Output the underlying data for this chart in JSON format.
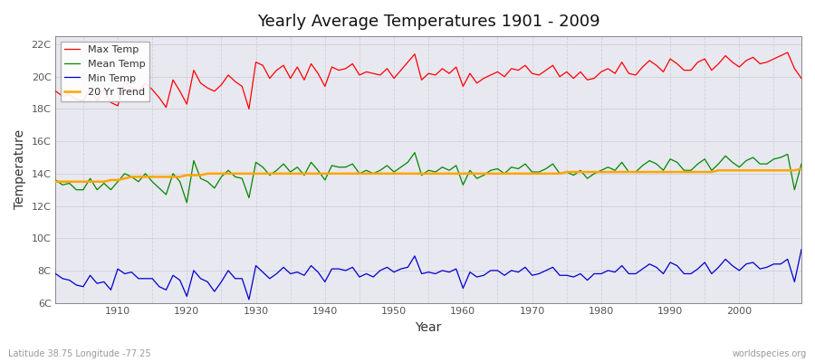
{
  "title": "Yearly Average Temperatures 1901 - 2009",
  "xlabel": "Year",
  "ylabel": "Temperature",
  "lat_lon_label": "Latitude 38.75 Longitude -77.25",
  "source_label": "worldspecies.org",
  "years": [
    1901,
    1902,
    1903,
    1904,
    1905,
    1906,
    1907,
    1908,
    1909,
    1910,
    1911,
    1912,
    1913,
    1914,
    1915,
    1916,
    1917,
    1918,
    1919,
    1920,
    1921,
    1922,
    1923,
    1924,
    1925,
    1926,
    1927,
    1928,
    1929,
    1930,
    1931,
    1932,
    1933,
    1934,
    1935,
    1936,
    1937,
    1938,
    1939,
    1940,
    1941,
    1942,
    1943,
    1944,
    1945,
    1946,
    1947,
    1948,
    1949,
    1950,
    1951,
    1952,
    1953,
    1954,
    1955,
    1956,
    1957,
    1958,
    1959,
    1960,
    1961,
    1962,
    1963,
    1964,
    1965,
    1966,
    1967,
    1968,
    1969,
    1970,
    1971,
    1972,
    1973,
    1974,
    1975,
    1976,
    1977,
    1978,
    1979,
    1980,
    1981,
    1982,
    1983,
    1984,
    1985,
    1986,
    1987,
    1988,
    1989,
    1990,
    1991,
    1992,
    1993,
    1994,
    1995,
    1996,
    1997,
    1998,
    1999,
    2000,
    2001,
    2002,
    2003,
    2004,
    2005,
    2006,
    2007,
    2008,
    2009
  ],
  "max_temp": [
    19.1,
    18.8,
    18.9,
    18.6,
    18.5,
    19.3,
    18.5,
    19.2,
    18.4,
    18.2,
    19.7,
    19.3,
    19.1,
    19.6,
    19.2,
    18.7,
    18.1,
    19.8,
    19.1,
    18.3,
    20.4,
    19.6,
    19.3,
    19.1,
    19.5,
    20.1,
    19.7,
    19.4,
    18.0,
    20.9,
    20.7,
    19.9,
    20.4,
    20.7,
    19.9,
    20.6,
    19.8,
    20.8,
    20.2,
    19.4,
    20.6,
    20.4,
    20.5,
    20.8,
    20.1,
    20.3,
    20.2,
    20.1,
    20.5,
    19.9,
    20.4,
    20.9,
    21.4,
    19.8,
    20.2,
    20.1,
    20.5,
    20.2,
    20.6,
    19.4,
    20.2,
    19.6,
    19.9,
    20.1,
    20.3,
    20.0,
    20.5,
    20.4,
    20.7,
    20.2,
    20.1,
    20.4,
    20.7,
    20.0,
    20.3,
    19.9,
    20.3,
    19.8,
    19.9,
    20.3,
    20.5,
    20.2,
    20.9,
    20.2,
    20.1,
    20.6,
    21.0,
    20.7,
    20.3,
    21.1,
    20.8,
    20.4,
    20.4,
    20.9,
    21.1,
    20.4,
    20.8,
    21.3,
    20.9,
    20.6,
    21.0,
    21.2,
    20.8,
    20.9,
    21.1,
    21.3,
    21.5,
    20.5,
    19.9
  ],
  "mean_temp": [
    13.6,
    13.3,
    13.4,
    13.0,
    13.0,
    13.7,
    13.0,
    13.4,
    13.0,
    13.5,
    14.0,
    13.8,
    13.5,
    14.0,
    13.5,
    13.1,
    12.7,
    14.0,
    13.5,
    12.2,
    14.8,
    13.7,
    13.5,
    13.1,
    13.8,
    14.2,
    13.8,
    13.7,
    12.5,
    14.7,
    14.4,
    13.9,
    14.2,
    14.6,
    14.1,
    14.4,
    13.9,
    14.7,
    14.2,
    13.6,
    14.5,
    14.4,
    14.4,
    14.6,
    14.0,
    14.2,
    14.0,
    14.2,
    14.5,
    14.1,
    14.4,
    14.7,
    15.3,
    13.9,
    14.2,
    14.1,
    14.4,
    14.2,
    14.5,
    13.3,
    14.2,
    13.7,
    13.9,
    14.2,
    14.3,
    14.0,
    14.4,
    14.3,
    14.6,
    14.1,
    14.1,
    14.3,
    14.6,
    14.0,
    14.1,
    13.9,
    14.2,
    13.7,
    14.0,
    14.2,
    14.4,
    14.2,
    14.7,
    14.1,
    14.1,
    14.5,
    14.8,
    14.6,
    14.2,
    14.9,
    14.7,
    14.2,
    14.2,
    14.6,
    14.9,
    14.2,
    14.6,
    15.1,
    14.7,
    14.4,
    14.8,
    15.0,
    14.6,
    14.6,
    14.9,
    15.0,
    15.2,
    13.0,
    14.6
  ],
  "min_temp": [
    7.8,
    7.5,
    7.4,
    7.1,
    7.0,
    7.7,
    7.2,
    7.3,
    6.8,
    8.1,
    7.8,
    7.9,
    7.5,
    7.5,
    7.5,
    7.0,
    6.8,
    7.7,
    7.4,
    6.4,
    8.0,
    7.5,
    7.3,
    6.7,
    7.3,
    8.0,
    7.5,
    7.5,
    6.2,
    8.3,
    7.9,
    7.5,
    7.8,
    8.2,
    7.8,
    7.9,
    7.7,
    8.3,
    7.9,
    7.3,
    8.1,
    8.1,
    8.0,
    8.2,
    7.6,
    7.8,
    7.6,
    8.0,
    8.2,
    7.9,
    8.1,
    8.2,
    8.9,
    7.8,
    7.9,
    7.8,
    8.0,
    7.9,
    8.1,
    6.9,
    7.9,
    7.6,
    7.7,
    8.0,
    8.0,
    7.7,
    8.0,
    7.9,
    8.2,
    7.7,
    7.8,
    8.0,
    8.2,
    7.7,
    7.7,
    7.6,
    7.8,
    7.4,
    7.8,
    7.8,
    8.0,
    7.9,
    8.3,
    7.8,
    7.8,
    8.1,
    8.4,
    8.2,
    7.8,
    8.5,
    8.3,
    7.8,
    7.8,
    8.1,
    8.5,
    7.8,
    8.2,
    8.7,
    8.3,
    8.0,
    8.4,
    8.5,
    8.1,
    8.2,
    8.4,
    8.4,
    8.7,
    7.3,
    9.3
  ],
  "trend_years": [
    1901,
    1902,
    1903,
    1904,
    1905,
    1906,
    1907,
    1908,
    1909,
    1910,
    1911,
    1912,
    1913,
    1914,
    1915,
    1916,
    1917,
    1918,
    1919,
    1920,
    1921,
    1922,
    1923,
    1924,
    1925,
    1926,
    1927,
    1928,
    1929,
    1930,
    1931,
    1932,
    1933,
    1934,
    1935,
    1936,
    1937,
    1938,
    1939,
    1940,
    1941,
    1942,
    1943,
    1944,
    1945,
    1946,
    1947,
    1948,
    1949,
    1950,
    1951,
    1952,
    1953,
    1954,
    1955,
    1956,
    1957,
    1958,
    1959,
    1960,
    1961,
    1962,
    1963,
    1964,
    1965,
    1966,
    1967,
    1968,
    1969,
    1970,
    1971,
    1972,
    1973,
    1974,
    1975,
    1976,
    1977,
    1978,
    1979,
    1980,
    1981,
    1982,
    1983,
    1984,
    1985,
    1986,
    1987,
    1988,
    1989,
    1990,
    1991,
    1992,
    1993,
    1994,
    1995,
    1996,
    1997,
    1998,
    1999,
    2000,
    2001,
    2002,
    2003,
    2004,
    2005,
    2006,
    2007,
    2008,
    2009
  ],
  "trend_values": [
    13.5,
    13.5,
    13.5,
    13.5,
    13.5,
    13.5,
    13.5,
    13.5,
    13.6,
    13.6,
    13.7,
    13.8,
    13.8,
    13.8,
    13.8,
    13.8,
    13.8,
    13.8,
    13.8,
    13.9,
    13.9,
    13.9,
    14.0,
    14.0,
    14.0,
    14.0,
    14.0,
    14.0,
    14.0,
    14.0,
    14.0,
    14.0,
    14.0,
    14.0,
    14.0,
    14.0,
    14.0,
    14.0,
    14.0,
    14.0,
    14.0,
    14.0,
    14.0,
    14.0,
    14.0,
    14.0,
    14.0,
    14.0,
    14.0,
    14.0,
    14.0,
    14.0,
    14.0,
    14.0,
    14.0,
    14.0,
    14.0,
    14.0,
    14.0,
    14.0,
    14.0,
    14.0,
    14.0,
    14.0,
    14.0,
    14.0,
    14.0,
    14.0,
    14.0,
    14.0,
    14.0,
    14.0,
    14.0,
    14.0,
    14.1,
    14.1,
    14.1,
    14.1,
    14.1,
    14.1,
    14.1,
    14.1,
    14.1,
    14.1,
    14.1,
    14.1,
    14.1,
    14.1,
    14.1,
    14.1,
    14.1,
    14.1,
    14.1,
    14.1,
    14.1,
    14.1,
    14.2,
    14.2,
    14.2,
    14.2,
    14.2,
    14.2,
    14.2,
    14.2,
    14.2,
    14.2,
    14.2,
    14.2,
    14.3
  ],
  "max_color": "#ff0000",
  "mean_color": "#008800",
  "min_color": "#0000cc",
  "trend_color": "#ffa500",
  "plot_bg_color": "#e8e8f0",
  "fig_bg_color": "#ffffff",
  "grid_color": "#d0d0dc",
  "ylim": [
    6,
    22.5
  ],
  "yticks": [
    6,
    8,
    10,
    12,
    14,
    16,
    18,
    20,
    22
  ],
  "ytick_labels": [
    "6C",
    "8C",
    "10C",
    "12C",
    "14C",
    "16C",
    "18C",
    "20C",
    "22C"
  ],
  "xticks": [
    1910,
    1920,
    1930,
    1940,
    1950,
    1960,
    1970,
    1980,
    1990,
    2000
  ],
  "xlim": [
    1901,
    2009
  ]
}
